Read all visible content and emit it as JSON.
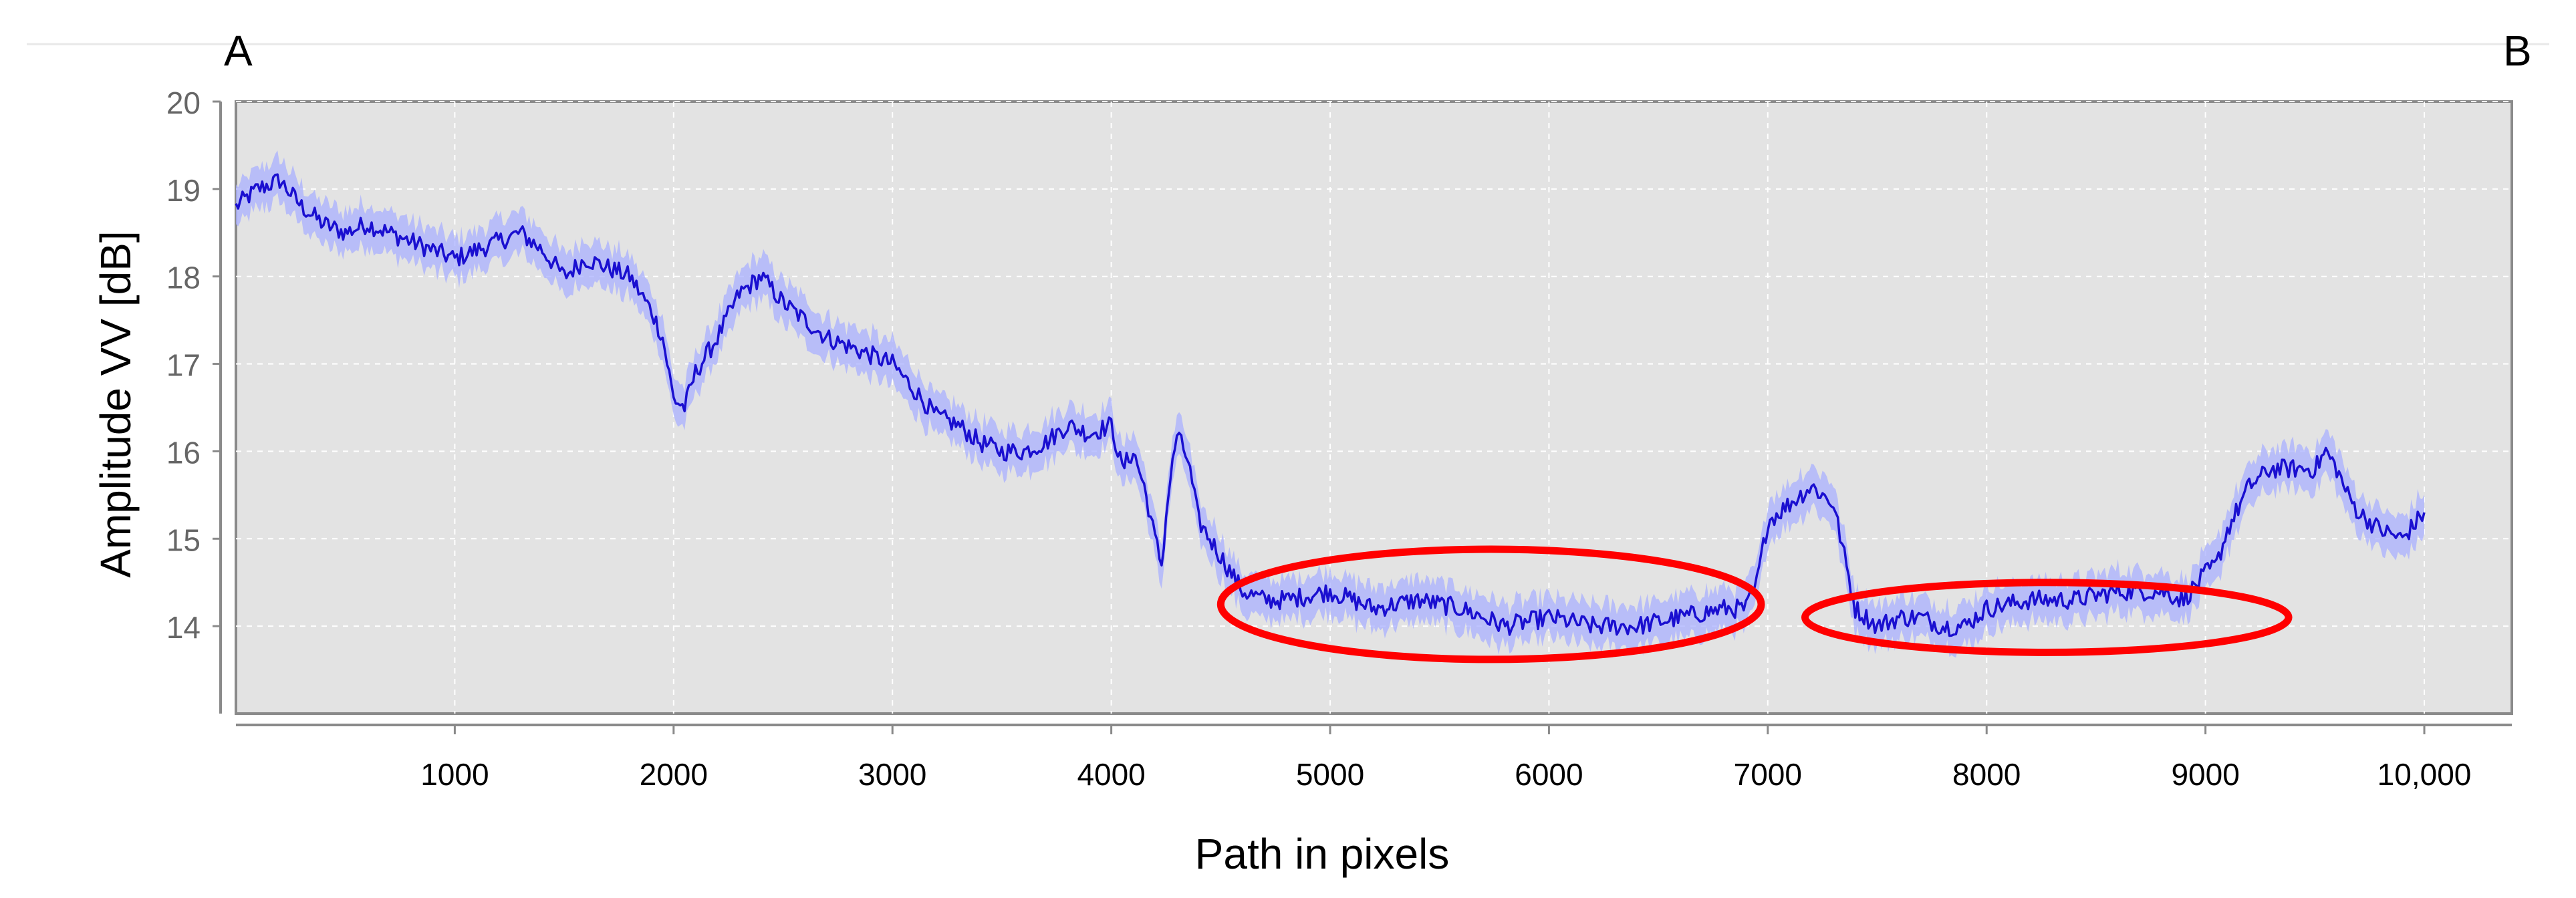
{
  "chart_data": {
    "type": "line",
    "title": "",
    "corner_labels": {
      "left": "A",
      "right": "B"
    },
    "xlabel": "Path in pixels",
    "ylabel": "Amplitude VV [dB]",
    "xlim": [
      0,
      10400
    ],
    "ylim": [
      13.0,
      20.0
    ],
    "x_ticks": [
      1000,
      2000,
      3000,
      4000,
      5000,
      6000,
      7000,
      8000,
      9000,
      10000
    ],
    "x_tick_labels": [
      "1000",
      "2000",
      "3000",
      "4000",
      "5000",
      "6000",
      "7000",
      "8000",
      "9000",
      "10,000"
    ],
    "y_ticks": [
      14,
      15,
      16,
      17,
      18,
      19,
      20
    ],
    "y_tick_labels": [
      "14",
      "15",
      "16",
      "17",
      "18",
      "19",
      "20"
    ],
    "grid": true,
    "legend": "none",
    "colors": {
      "line": "#1a0fd0",
      "band": "#aab0ff",
      "plot_bg": "#e3e3e3",
      "highlight": "#ff0000",
      "frame": "#8a8a8a"
    },
    "series": [
      {
        "x": [
          0,
          100,
          200,
          300,
          400,
          500,
          600,
          700,
          800,
          900,
          1000,
          1100,
          1200,
          1300,
          1400,
          1500,
          1600,
          1700,
          1800,
          1900,
          1950,
          2000,
          2050,
          2100,
          2200,
          2300,
          2400,
          2500,
          2600,
          2700,
          2800,
          2900,
          3000,
          3100,
          3200,
          3300,
          3400,
          3500,
          3600,
          3700,
          3800,
          3900,
          4000,
          4050,
          4100,
          4150,
          4200,
          4230,
          4260,
          4300,
          4350,
          4400,
          4500,
          4600,
          4700,
          4800,
          5000,
          5200,
          5400,
          5600,
          5800,
          6000,
          6200,
          6400,
          6600,
          6800,
          6900,
          6950,
          7000,
          7100,
          7200,
          7300,
          7350,
          7400,
          7500,
          7600,
          7700,
          7800,
          7900,
          8000,
          8200,
          8400,
          8600,
          8800,
          8900,
          9000,
          9050,
          9100,
          9200,
          9300,
          9400,
          9500,
          9550,
          9600,
          9650,
          9700,
          9800,
          9900,
          10000
        ],
        "y": [
          18.8,
          19.0,
          19.1,
          18.8,
          18.6,
          18.5,
          18.6,
          18.5,
          18.4,
          18.3,
          18.2,
          18.3,
          18.4,
          18.5,
          18.3,
          18.0,
          18.2,
          18.1,
          18.0,
          17.6,
          17.3,
          16.6,
          16.5,
          16.9,
          17.3,
          17.8,
          18.0,
          17.7,
          17.5,
          17.3,
          17.2,
          17.1,
          17.0,
          16.7,
          16.4,
          16.3,
          16.1,
          16.0,
          16.0,
          16.1,
          16.3,
          16.2,
          16.3,
          15.8,
          16.0,
          15.6,
          15.0,
          14.7,
          15.5,
          16.2,
          15.9,
          15.2,
          14.8,
          14.4,
          14.3,
          14.3,
          14.4,
          14.2,
          14.3,
          14.2,
          14.0,
          14.1,
          14.0,
          14.0,
          14.1,
          14.2,
          14.2,
          14.5,
          15.2,
          15.4,
          15.6,
          15.4,
          14.8,
          14.2,
          14.0,
          14.1,
          14.1,
          14.0,
          14.0,
          14.2,
          14.3,
          14.3,
          14.4,
          14.4,
          14.3,
          14.6,
          14.7,
          15.1,
          15.6,
          15.8,
          15.8,
          15.8,
          16.0,
          15.8,
          15.5,
          15.3,
          15.1,
          15.0,
          15.3
        ]
      }
    ],
    "highlights": [
      {
        "shape": "ellipse",
        "x_range": [
          4500,
          6970
        ],
        "y_center": 14.25,
        "y_halfheight": 0.63
      },
      {
        "shape": "ellipse",
        "x_range": [
          7170,
          9380
        ],
        "y_center": 14.1,
        "y_halfheight": 0.4
      }
    ]
  }
}
